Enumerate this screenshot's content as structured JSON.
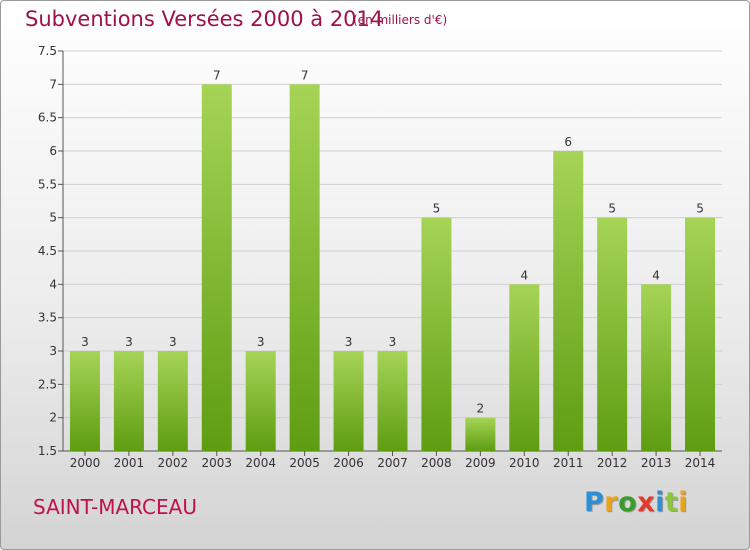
{
  "header": {
    "title": "Subventions Versées 2000 à 2014",
    "unit": "(en milliers d'€)"
  },
  "footer": {
    "commune": "SAINT-MARCEAU",
    "logo_text": "Proxiti"
  },
  "colors": {
    "title": "#a0104a",
    "bar_light": "#a6d456",
    "bar_dark": "#5e9d12",
    "logo_letters": [
      "#2f8fd6",
      "#e8a21c",
      "#3a9a2a",
      "#e23a2a",
      "#2f8fd6",
      "#8cc63f",
      "#e8a21c"
    ]
  },
  "chart_data": {
    "type": "bar",
    "categories": [
      "2000",
      "2001",
      "2002",
      "2003",
      "2004",
      "2005",
      "2006",
      "2007",
      "2008",
      "2009",
      "2010",
      "2011",
      "2012",
      "2013",
      "2014"
    ],
    "values": [
      3,
      3,
      3,
      7,
      3,
      7,
      3,
      3,
      5,
      2,
      4,
      6,
      5,
      4,
      5
    ],
    "data_labels": [
      "3",
      "3",
      "3",
      "7",
      "3",
      "7",
      "3",
      "3",
      "5",
      "2",
      "4",
      "6",
      "5",
      "4",
      "5"
    ],
    "yticks": [
      "1.5",
      "2",
      "2.5",
      "3",
      "3.5",
      "4",
      "4.5",
      "5",
      "5.5",
      "6",
      "6.5",
      "7",
      "7.5"
    ],
    "ylim": [
      1.5,
      7.5
    ],
    "grid": true,
    "xlabel": "",
    "ylabel": ""
  }
}
